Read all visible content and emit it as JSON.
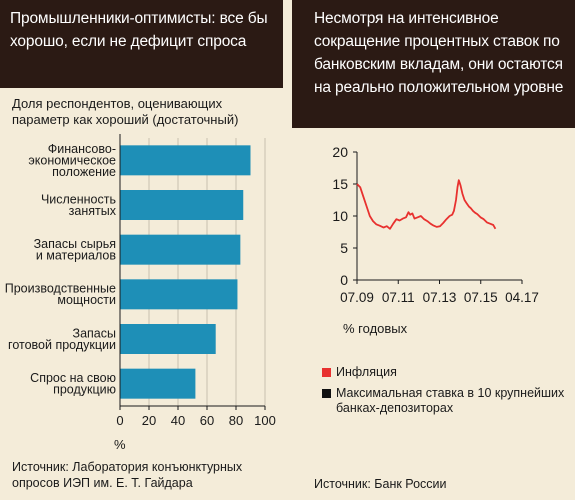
{
  "left": {
    "title": "Промышленники-оптимисты: все бы хорошо, если не дефицит спроса",
    "subtitle": "Доля респондентов, оценивающих параметр как хороший (достаточный)",
    "unit": "%",
    "source": "Источник: Лаборатория конъюнктурных опросов ИЭП им. Е. Т. Гайдара"
  },
  "right": {
    "title": "Несмотря на интенсивное сокращение процентных ставок по банковским вкладам, они остаются на реально положительном уровне",
    "unit": "% годовых",
    "source": "Источник: Банк России",
    "legend": [
      {
        "label": "Инфляция",
        "color": "#e8312f"
      },
      {
        "label": "Максимальная ставка в 10 крупнейших банках-депозиторах",
        "color": "#111111"
      }
    ]
  },
  "chart_data": [
    {
      "type": "bar",
      "orientation": "horizontal",
      "categories": [
        "Финансово-экономическое положение",
        "Численность занятых",
        "Запасы сырья и материалов",
        "Производственные мощности",
        "Запасы готовой продукции",
        "Спрос на свою продукцию"
      ],
      "category_lines": [
        [
          "Финансово-",
          "экономическое",
          "положение"
        ],
        [
          "Численность",
          "занятых"
        ],
        [
          "Запасы сырья",
          "и материалов"
        ],
        [
          "Производственные",
          "мощности"
        ],
        [
          "Запасы",
          "готовой продукции"
        ],
        [
          "Спрос на свою",
          "продукцию"
        ]
      ],
      "values": [
        90,
        85,
        83,
        81,
        66,
        52
      ],
      "xlim": [
        0,
        100
      ],
      "xticks": [
        0,
        20,
        40,
        60,
        80,
        100
      ],
      "bar_color": "#1e8fb7",
      "grid": true
    },
    {
      "type": "line",
      "x_ticks": [
        "07.09",
        "07.11",
        "07.13",
        "07.15",
        "04.17"
      ],
      "ylim": [
        0,
        20
      ],
      "yticks": [
        0,
        5,
        10,
        15,
        20
      ],
      "grid": false,
      "series": [
        {
          "name": "Инфляция",
          "color": "#e8312f",
          "points": [
            [
              2009.5,
              15.0
            ],
            [
              2009.65,
              14.5
            ],
            [
              2009.8,
              13.0
            ],
            [
              2009.95,
              11.5
            ],
            [
              2010.1,
              10.0
            ],
            [
              2010.25,
              9.2
            ],
            [
              2010.4,
              8.7
            ],
            [
              2010.55,
              8.5
            ],
            [
              2010.75,
              8.2
            ],
            [
              2010.9,
              8.4
            ],
            [
              2011.05,
              8.0
            ],
            [
              2011.2,
              8.8
            ],
            [
              2011.35,
              9.5
            ],
            [
              2011.5,
              9.3
            ],
            [
              2011.65,
              9.6
            ],
            [
              2011.8,
              9.8
            ],
            [
              2011.92,
              10.6
            ],
            [
              2012.0,
              10.2
            ],
            [
              2012.1,
              10.4
            ],
            [
              2012.2,
              9.6
            ],
            [
              2012.35,
              9.8
            ],
            [
              2012.5,
              10.0
            ],
            [
              2012.65,
              9.5
            ],
            [
              2012.8,
              9.2
            ],
            [
              2012.95,
              8.8
            ],
            [
              2013.1,
              8.5
            ],
            [
              2013.25,
              8.3
            ],
            [
              2013.4,
              8.4
            ],
            [
              2013.55,
              8.9
            ],
            [
              2013.7,
              9.5
            ],
            [
              2013.85,
              10.0
            ],
            [
              2013.97,
              10.2
            ],
            [
              2014.05,
              10.8
            ],
            [
              2014.15,
              12.5
            ],
            [
              2014.22,
              14.5
            ],
            [
              2014.28,
              15.6
            ],
            [
              2014.36,
              14.8
            ],
            [
              2014.45,
              13.5
            ],
            [
              2014.55,
              12.5
            ],
            [
              2014.65,
              12.0
            ],
            [
              2014.75,
              11.5
            ],
            [
              2014.85,
              11.2
            ],
            [
              2014.95,
              10.8
            ],
            [
              2015.05,
              10.5
            ],
            [
              2015.15,
              10.3
            ],
            [
              2015.3,
              9.8
            ],
            [
              2015.45,
              9.5
            ],
            [
              2015.6,
              9.0
            ],
            [
              2015.75,
              8.8
            ],
            [
              2015.9,
              8.6
            ],
            [
              2016.0,
              8.0
            ]
          ]
        }
      ]
    }
  ]
}
